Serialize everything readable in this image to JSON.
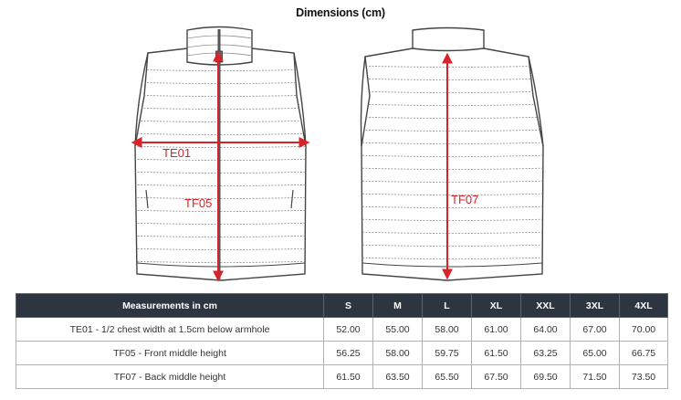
{
  "title": "Dimensions (cm)",
  "labels": {
    "te01": "TE01",
    "tf05": "TF05",
    "tf07": "TF07"
  },
  "colors": {
    "arrow": "#d8232a",
    "header_bg": "#2c3540",
    "outline": "#444444"
  },
  "table": {
    "header_label": "Measurements in cm",
    "sizes": [
      "S",
      "M",
      "L",
      "XL",
      "XXL",
      "3XL",
      "4XL"
    ],
    "rows": [
      {
        "label": "TE01 - 1/2 chest width at 1.5cm below armhole",
        "values": [
          "52.00",
          "55.00",
          "58.00",
          "61.00",
          "64.00",
          "67.00",
          "70.00"
        ]
      },
      {
        "label": "TF05 - Front middle height",
        "values": [
          "56.25",
          "58.00",
          "59.75",
          "61.50",
          "63.25",
          "65.00",
          "66.75"
        ]
      },
      {
        "label": "TF07 - Back middle height",
        "values": [
          "61.50",
          "63.50",
          "65.50",
          "67.50",
          "69.50",
          "71.50",
          "73.50"
        ]
      }
    ]
  }
}
